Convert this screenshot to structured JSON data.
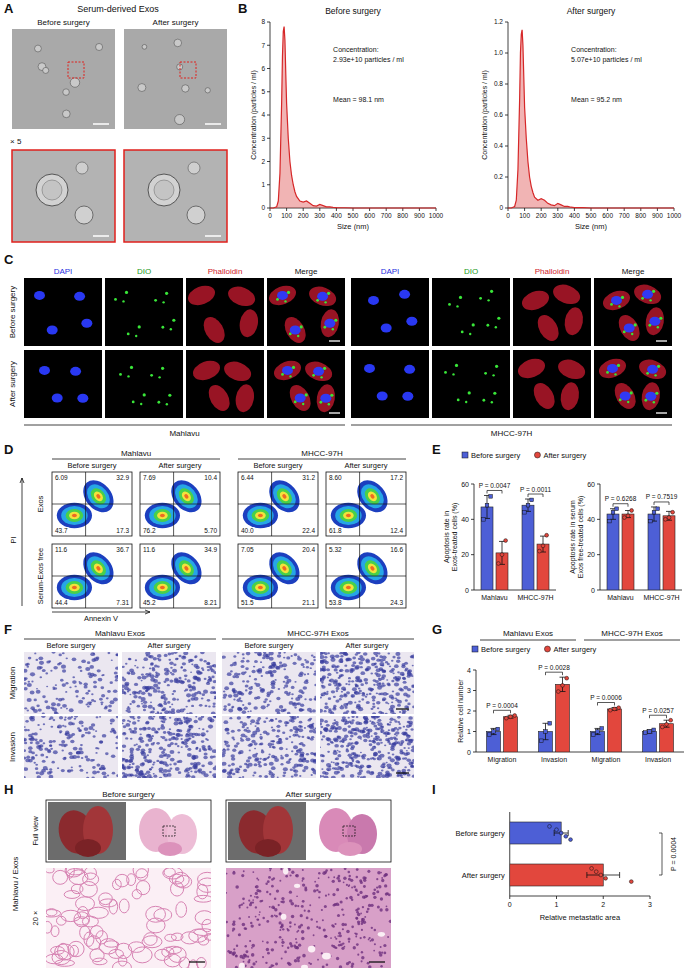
{
  "panel_letters": [
    "A",
    "B",
    "C",
    "D",
    "E",
    "F",
    "G",
    "H",
    "I"
  ],
  "panel_a": {
    "title": "Serum-derived Exos",
    "columns": [
      "Before surgery",
      "After surgery"
    ],
    "zoom_label": "× 5"
  },
  "panel_c": {
    "rows": [
      "Before surgery",
      "After surgery"
    ],
    "channels": [
      "DAPI",
      "DIO",
      "Phalloidin",
      "Merge"
    ],
    "groups": [
      "Mahlavu",
      "MHCC-97H"
    ]
  },
  "panel_d": {
    "groups": [
      "Mahlavu",
      "MHCC-97H"
    ],
    "conditions": [
      "Before surgery",
      "After surgery"
    ],
    "x_label": "Annexin V",
    "y_label": "PI",
    "rows": [
      {
        "label": "Exos",
        "plots": [
          {
            "ul": "6.09",
            "ur": "32.9",
            "ll": "43.7",
            "lr": "17.3"
          },
          {
            "ul": "7.69",
            "ur": "10.4",
            "ll": "76.2",
            "lr": "5.70"
          },
          {
            "ul": "6.44",
            "ur": "31.2",
            "ll": "40.0",
            "lr": "22.4"
          },
          {
            "ul": "8.60",
            "ur": "17.2",
            "ll": "61.8",
            "lr": "12.4"
          }
        ]
      },
      {
        "label": "Serum-Exos free",
        "plots": [
          {
            "ul": "11.6",
            "ur": "36.7",
            "ll": "44.4",
            "lr": "7.31"
          },
          {
            "ul": "11.6",
            "ur": "34.9",
            "ll": "45.2",
            "lr": "8.21"
          },
          {
            "ul": "7.05",
            "ur": "20.4",
            "ll": "51.5",
            "lr": "21.1"
          },
          {
            "ul": "5.32",
            "ur": "16.6",
            "ll": "53.8",
            "lr": "24.3"
          }
        ]
      }
    ]
  },
  "panel_f": {
    "groups": [
      "Mahlavu Exos",
      "MHCC-97H Exos"
    ],
    "conditions": [
      "Before surgery",
      "After surgery"
    ],
    "rows": [
      "Migration",
      "Invasion"
    ]
  },
  "panel_h": {
    "row_title": "Mahlavu / Exos",
    "conditions": [
      "Before surgery",
      "After surgery"
    ],
    "rows": [
      "Full view",
      "20 ×"
    ]
  },
  "chart_data": [
    {
      "type": "line",
      "title": "Before surgery",
      "x_label": "Size (nm)",
      "y_label": "Concentration (particles / ml)",
      "color": "#d62728",
      "x": [
        0,
        20,
        40,
        50,
        60,
        70,
        75,
        80,
        85,
        90,
        95,
        100,
        110,
        120,
        130,
        140,
        150,
        160,
        180,
        200,
        220,
        240,
        260,
        280,
        300,
        320,
        340,
        360,
        380,
        400,
        450,
        500,
        600,
        700,
        800,
        900,
        1000
      ],
      "values": [
        0,
        0,
        0.05,
        0.3,
        1.5,
        4.5,
        6.5,
        7.6,
        7.8,
        7.2,
        5.8,
        4.5,
        3.0,
        2.0,
        1.4,
        1.0,
        0.7,
        0.5,
        0.3,
        0.25,
        0.3,
        0.2,
        0.1,
        0.08,
        0.15,
        0.1,
        0.05,
        0.05,
        0.03,
        0.02,
        0.01,
        0,
        0,
        0,
        0,
        0,
        0
      ],
      "xlim": [
        0,
        1000
      ],
      "xticks": [
        0,
        100,
        200,
        300,
        400,
        500,
        600,
        700,
        800,
        900,
        1000
      ],
      "ylim": [
        0,
        8
      ],
      "yticks": [
        0,
        1,
        2,
        3,
        4,
        5,
        6,
        7,
        8
      ],
      "annotations": [
        "Concentration:",
        "2.93e+10 particles / ml",
        "Mean = 98.1 nm"
      ]
    },
    {
      "type": "line",
      "title": "After surgery",
      "x_label": "Size (nm)",
      "y_label": "Concentration (particles / ml)",
      "color": "#d62728",
      "x": [
        0,
        20,
        40,
        50,
        60,
        70,
        75,
        80,
        85,
        90,
        95,
        100,
        110,
        120,
        130,
        140,
        150,
        160,
        180,
        200,
        220,
        240,
        260,
        280,
        300,
        320,
        340,
        360,
        380,
        400,
        450,
        500,
        600,
        700,
        800,
        900,
        1000
      ],
      "values": [
        0,
        0,
        0.01,
        0.05,
        0.25,
        0.7,
        1.0,
        1.12,
        1.15,
        1.05,
        0.85,
        0.65,
        0.45,
        0.3,
        0.2,
        0.14,
        0.1,
        0.07,
        0.05,
        0.06,
        0.05,
        0.03,
        0.02,
        0.015,
        0.03,
        0.02,
        0.01,
        0.01,
        0.005,
        0.003,
        0.002,
        0,
        0,
        0,
        0,
        0,
        0
      ],
      "xlim": [
        0,
        1000
      ],
      "xticks": [
        0,
        100,
        200,
        300,
        400,
        500,
        600,
        700,
        800,
        900,
        1000
      ],
      "ylim": [
        0,
        1.2
      ],
      "yticks": [
        0,
        0.2,
        0.4,
        0.6,
        0.8,
        {
          "value": 1,
          "label": "1.0"
        },
        1.2
      ],
      "annotations": [
        "Concentration:",
        "5.07e+10 particles / ml",
        "Mean = 95.2 nm"
      ]
    },
    {
      "type": "bar",
      "legend": "top",
      "series": [
        {
          "name": "Before surgery",
          "color": "#4d5fd6",
          "marker": "square"
        },
        {
          "name": "After surgery",
          "color": "#e2473d",
          "marker": "circle"
        }
      ],
      "facets": [
        {
          "y_label": "Apoptosis rate in Exos-treated cells (%)",
          "categories": [
            "Mahlavu",
            "MHCC-97H"
          ],
          "ylim": [
            0,
            60
          ],
          "yticks": [
            0,
            20,
            40,
            60
          ],
          "data": [
            {
              "values": [
                47,
                48
              ],
              "errors": [
                6.5,
                3.5
              ],
              "points": [
                [
                  40,
                  48,
                  53
                ],
                [
                  44,
                  48,
                  51
                ]
              ]
            },
            {
              "values": [
                21,
                26
              ],
              "errors": [
                6.5,
                4.5
              ],
              "points": [
                [
                  15,
                  20,
                  28
                ],
                [
                  22,
                  25,
                  31
                ]
              ]
            }
          ],
          "annotations": [
            "P = 0.0047",
            "P = 0.0011"
          ]
        },
        {
          "y_label": "Apoptosis rate in serum Exos free-treated cells (%)",
          "categories": [
            "Mahlavu",
            "MHCC-97H"
          ],
          "ylim": [
            0,
            60
          ],
          "yticks": [
            0,
            20,
            40,
            60
          ],
          "data": [
            {
              "values": [
                43,
                43
              ],
              "errors": [
                3,
                4
              ],
              "points": [
                [
                  39,
                  44,
                  46
                ],
                [
                  39,
                  44,
                  46
                ]
              ]
            },
            {
              "values": [
                43,
                42
              ],
              "errors": [
                2,
                2.5
              ],
              "points": [
                [
                  41,
                  42,
                  45
                ],
                [
                  40,
                  41,
                  44
                ]
              ]
            }
          ],
          "annotations": [
            "P = 0.6268",
            "P = 0.7519"
          ]
        }
      ]
    },
    {
      "type": "bar",
      "legend": "top",
      "groups": [
        "Mahlavu Exos",
        "MHCC-97H Exos"
      ],
      "categories": [
        "Migration",
        "Invasion",
        "Migration",
        "Invasion"
      ],
      "y_label": "Relative cell number",
      "ylim": [
        0,
        4
      ],
      "yticks": [
        0,
        1,
        2,
        3,
        4
      ],
      "series": [
        {
          "name": "Before surgery",
          "color": "#4d5fd6",
          "marker": "square",
          "values": [
            1,
            1,
            1,
            1
          ],
          "errors": [
            0.15,
            0.4,
            0.15,
            0.08
          ],
          "points": [
            [
              0.85,
              1.0,
              1.12
            ],
            [
              0.55,
              1.0,
              1.4
            ],
            [
              0.85,
              1.0,
              1.15
            ],
            [
              0.95,
              1.0,
              1.08
            ]
          ]
        },
        {
          "name": "After surgery",
          "color": "#e2473d",
          "marker": "circle",
          "values": [
            1.72,
            3.3,
            2.1,
            1.38
          ],
          "errors": [
            0.07,
            0.35,
            0.07,
            0.17
          ],
          "points": [
            [
              1.65,
              1.72,
              1.78
            ],
            [
              2.95,
              3.25,
              3.6
            ],
            [
              2.04,
              2.1,
              2.16
            ],
            [
              1.22,
              1.35,
              1.55
            ]
          ]
        }
      ],
      "annotations": [
        "P = 0.0004",
        "P = 0.0028",
        "P = 0.0006",
        "P = 0.0257"
      ]
    },
    {
      "type": "bar",
      "orientation": "horizontal",
      "marker": "circle",
      "categories": [
        "Before surgery",
        "After surgery"
      ],
      "values": [
        1.1,
        2.0
      ],
      "errors": [
        0.15,
        0.35
      ],
      "points": [
        [
          0.85,
          1.0,
          1.1,
          1.2,
          1.3
        ],
        [
          1.75,
          1.85,
          1.95,
          2.05,
          2.6
        ]
      ],
      "colors": [
        "#4d5fd6",
        "#e2473d"
      ],
      "x_label": "Relative metastatic area",
      "xlim": [
        0,
        3
      ],
      "xticks": [
        0,
        1,
        2,
        3
      ],
      "annotations": [
        "P = 0.0004"
      ]
    }
  ]
}
